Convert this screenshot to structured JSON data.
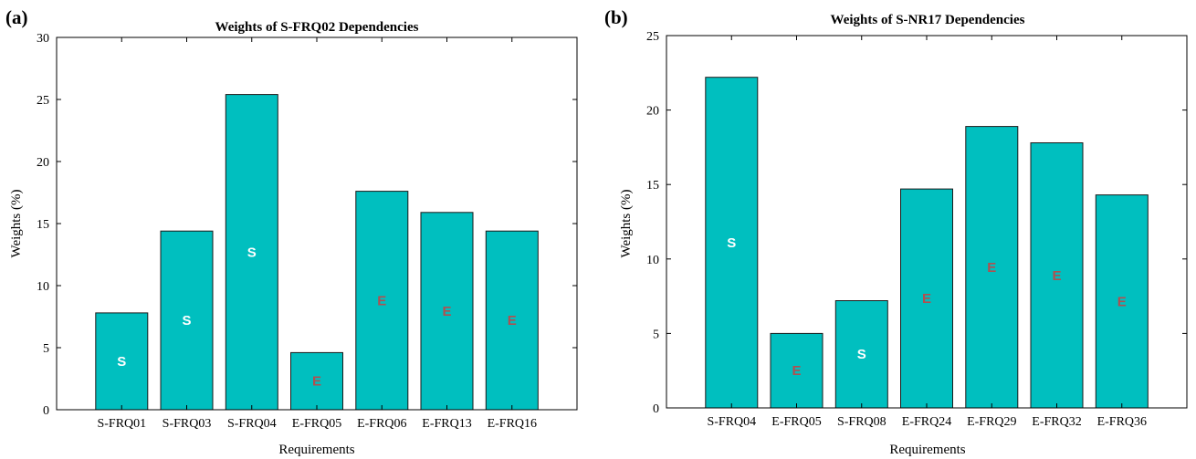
{
  "chart_data": [
    {
      "type": "bar",
      "panel_label": "(a)",
      "title": "Weights of S-FRQ02 Dependencies",
      "xlabel": "Requirements",
      "ylabel": "Weights (%)",
      "ylim": [
        0,
        30
      ],
      "yticks": [
        0,
        5,
        10,
        15,
        20,
        25,
        30
      ],
      "categories": [
        "S-FRQ01",
        "S-FRQ03",
        "S-FRQ04",
        "E-FRQ05",
        "E-FRQ06",
        "E-FRQ13",
        "E-FRQ16"
      ],
      "values": [
        7.8,
        14.4,
        25.4,
        4.6,
        17.6,
        15.9,
        14.4
      ],
      "bar_labels": [
        "S",
        "S",
        "S",
        "E",
        "E",
        "E",
        "E"
      ],
      "bar_color": "#00bfbf",
      "label_colors": {
        "S": "#ffffff",
        "E": "#b05050"
      },
      "grid": false
    },
    {
      "type": "bar",
      "panel_label": "(b)",
      "title": "Weights of S-NR17 Dependencies",
      "xlabel": "Requirements",
      "ylabel": "Weights (%)",
      "ylim": [
        0,
        25
      ],
      "yticks": [
        0,
        5,
        10,
        15,
        20,
        25
      ],
      "categories": [
        "S-FRQ04",
        "E-FRQ05",
        "S-FRQ08",
        "E-FRQ24",
        "E-FRQ29",
        "E-FRQ32",
        "E-FRQ36"
      ],
      "values": [
        22.2,
        5.0,
        7.2,
        14.7,
        18.9,
        17.8,
        14.3
      ],
      "bar_labels": [
        "S",
        "E",
        "S",
        "E",
        "E",
        "E",
        "E"
      ],
      "bar_color": "#00bfbf",
      "label_colors": {
        "S": "#ffffff",
        "E": "#b05050"
      },
      "grid": false
    }
  ]
}
